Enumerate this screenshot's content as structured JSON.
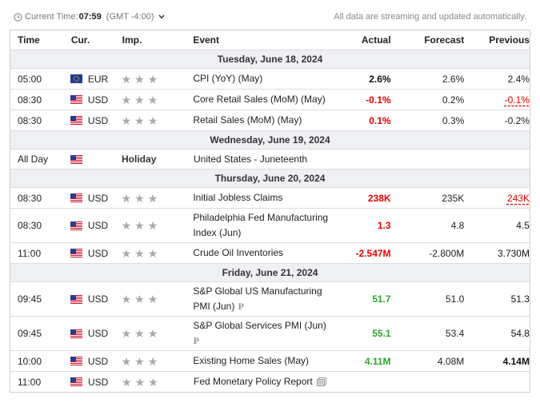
{
  "topbar": {
    "clock_label": "Current Time:",
    "clock_time": "07:59",
    "timezone": "(GMT -4:00)",
    "notice": "All data are streaming and updated automatically."
  },
  "columns": {
    "time": "Time",
    "currency": "Cur.",
    "importance": "Imp.",
    "event": "Event",
    "actual": "Actual",
    "forecast": "Forecast",
    "previous": "Previous"
  },
  "days": [
    "Tuesday, June 18, 2024",
    "Wednesday, June 19, 2024",
    "Thursday, June 20, 2024",
    "Friday, June 21, 2024"
  ],
  "events": [
    {
      "time": "05:00",
      "currency": "EUR",
      "flag": "eu-flag-icon",
      "event": "CPI (YoY) (May)",
      "actual": "2.6%",
      "actual_color": "#111111",
      "forecast": "2.6%",
      "previous": "2.4%",
      "previous_color": "#111111"
    },
    {
      "time": "08:30",
      "currency": "USD",
      "flag": "us-flag-icon",
      "event": "Core Retail Sales (MoM) (May)",
      "actual": "-0.1%",
      "actual_color": "#e60000",
      "forecast": "0.2%",
      "previous": "-0.1%",
      "previous_color": "#e60000"
    },
    {
      "time": "08:30",
      "currency": "USD",
      "flag": "us-flag-icon",
      "event": "Retail Sales (MoM) (May)",
      "actual": "0.1%",
      "actual_color": "#e60000",
      "forecast": "0.3%",
      "previous": "-0.2%",
      "previous_color": "#111111"
    },
    {
      "time": "All Day",
      "currency": "",
      "flag": "us-flag-icon",
      "importance_label": "Holiday",
      "event": "United States - Juneteenth"
    },
    {
      "time": "08:30",
      "currency": "USD",
      "flag": "us-flag-icon",
      "event": "Initial Jobless Claims",
      "actual": "238K",
      "actual_color": "#e60000",
      "forecast": "235K",
      "previous": "243K",
      "previous_color": "#e60000"
    },
    {
      "time": "08:30",
      "currency": "USD",
      "flag": "us-flag-icon",
      "event": "Philadelphia Fed Manufacturing Index (Jun)",
      "actual": "1.3",
      "actual_color": "#e60000",
      "forecast": "4.8",
      "previous": "4.5",
      "previous_color": "#111111"
    },
    {
      "time": "11:00",
      "currency": "USD",
      "flag": "us-flag-icon",
      "event": "Crude Oil Inventories",
      "actual": "-2.547M",
      "actual_color": "#e60000",
      "forecast": "-2.800M",
      "previous": "3.730M",
      "previous_color": "#111111"
    },
    {
      "time": "09:45",
      "currency": "USD",
      "flag": "us-flag-icon",
      "event": "S&P Global US Manufacturing PMI (Jun)",
      "actual": "51.7",
      "actual_color": "#2da52d",
      "forecast": "51.0",
      "previous": "51.3",
      "previous_color": "#111111"
    },
    {
      "time": "09:45",
      "currency": "USD",
      "flag": "us-flag-icon",
      "event": "S&P Global Services PMI (Jun)",
      "actual": "55.1",
      "actual_color": "#2da52d",
      "forecast": "53.4",
      "previous": "54.8",
      "previous_color": "#111111"
    },
    {
      "time": "10:00",
      "currency": "USD",
      "flag": "us-flag-icon",
      "event": "Existing Home Sales (May)",
      "actual": "4.11M",
      "actual_color": "#2da52d",
      "forecast": "4.08M",
      "previous": "4.14M",
      "previous_color": "#111111"
    },
    {
      "time": "11:00",
      "currency": "USD",
      "flag": "us-flag-icon",
      "event": "Fed Monetary Policy Report",
      "actual": "",
      "forecast": "",
      "previous": ""
    }
  ],
  "icons": {
    "clock": "clock-icon",
    "chevron": "chevron-down-icon",
    "star": "star-icon",
    "preliminary": "preliminary-p-icon",
    "report": "report-document-icon"
  },
  "colors": {
    "negative": "#e60000",
    "positive": "#2da52d",
    "star": "#a8a8a8",
    "date_row_bg": "#eef0f3"
  }
}
